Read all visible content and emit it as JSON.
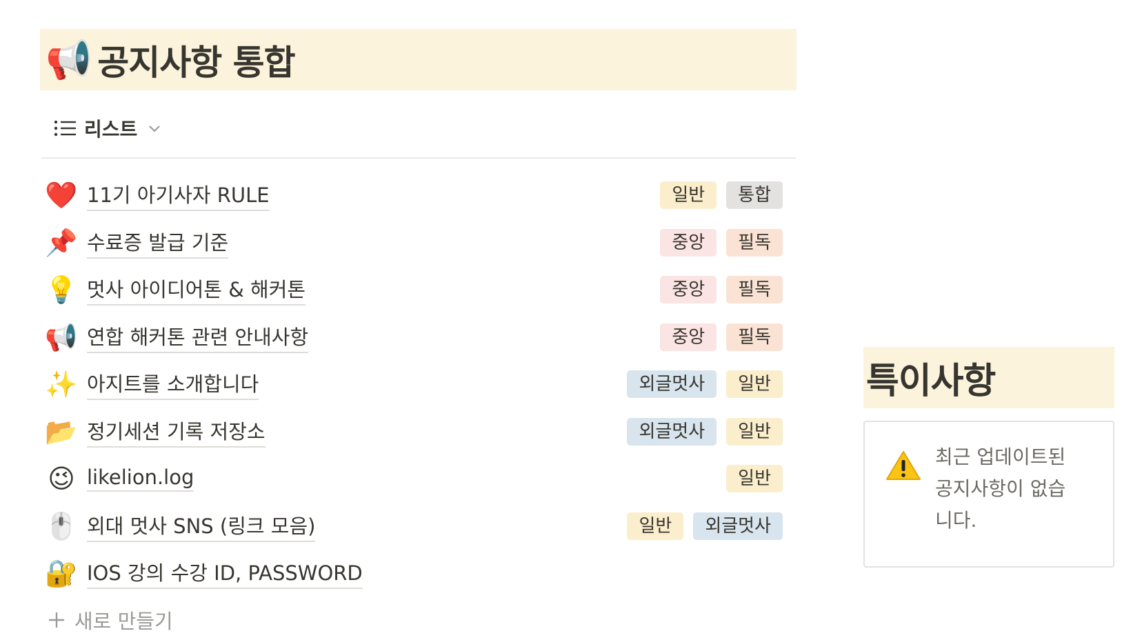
{
  "db": {
    "emoji": "📢",
    "title": "공지사항 통합",
    "view_label": "리스트"
  },
  "rows": [
    {
      "emoji": "❤️",
      "title": "11기 아기사자 RULE",
      "tags": [
        {
          "label": "일반",
          "color": "#fbeecc"
        },
        {
          "label": "통합",
          "color": "#e3e2e0"
        }
      ]
    },
    {
      "emoji": "📌",
      "title": "수료증 발급 기준",
      "tags": [
        {
          "label": "중앙",
          "color": "#fbe4e4"
        },
        {
          "label": "필독",
          "color": "#fae3d4"
        }
      ]
    },
    {
      "emoji": "💡",
      "title": "멋사 아이디어톤 & 해커톤",
      "tags": [
        {
          "label": "중앙",
          "color": "#fbe4e4"
        },
        {
          "label": "필독",
          "color": "#fae3d4"
        }
      ]
    },
    {
      "emoji": "📢",
      "title": "연합 해커톤 관련 안내사항",
      "tags": [
        {
          "label": "중앙",
          "color": "#fbe4e4"
        },
        {
          "label": "필독",
          "color": "#fae3d4"
        }
      ]
    },
    {
      "emoji": "✨",
      "title": "아지트를 소개합니다",
      "tags": [
        {
          "label": "외글멋사",
          "color": "#d8e5ee"
        },
        {
          "label": "일반",
          "color": "#fbeecc"
        }
      ]
    },
    {
      "emoji": "📂",
      "title": "정기세션 기록 저장소",
      "tags": [
        {
          "label": "외글멋사",
          "color": "#d8e5ee"
        },
        {
          "label": "일반",
          "color": "#fbeecc"
        }
      ]
    },
    {
      "emoji": "😉",
      "title": "likelion.log",
      "tags": [
        {
          "label": "일반",
          "color": "#fbeecc"
        }
      ]
    },
    {
      "emoji": "🖱️",
      "title": "외대 멋사 SNS (링크 모음)",
      "tags": [
        {
          "label": "일반",
          "color": "#fbeecc"
        },
        {
          "label": "외글멋사",
          "color": "#d8e5ee"
        }
      ]
    },
    {
      "emoji": "🔐",
      "title": "IOS 강의 수강 ID, PASSWORD",
      "tags": []
    }
  ],
  "new_label": "새로 만들기",
  "side": {
    "title": "특이사항",
    "callout_icon": "⚠️",
    "callout_text": "최근 업데이트된 공지사항이 없습니다."
  },
  "colors": {
    "header_bg": "#fbf3db",
    "text": "#37352f",
    "muted": "#9b9a97"
  }
}
